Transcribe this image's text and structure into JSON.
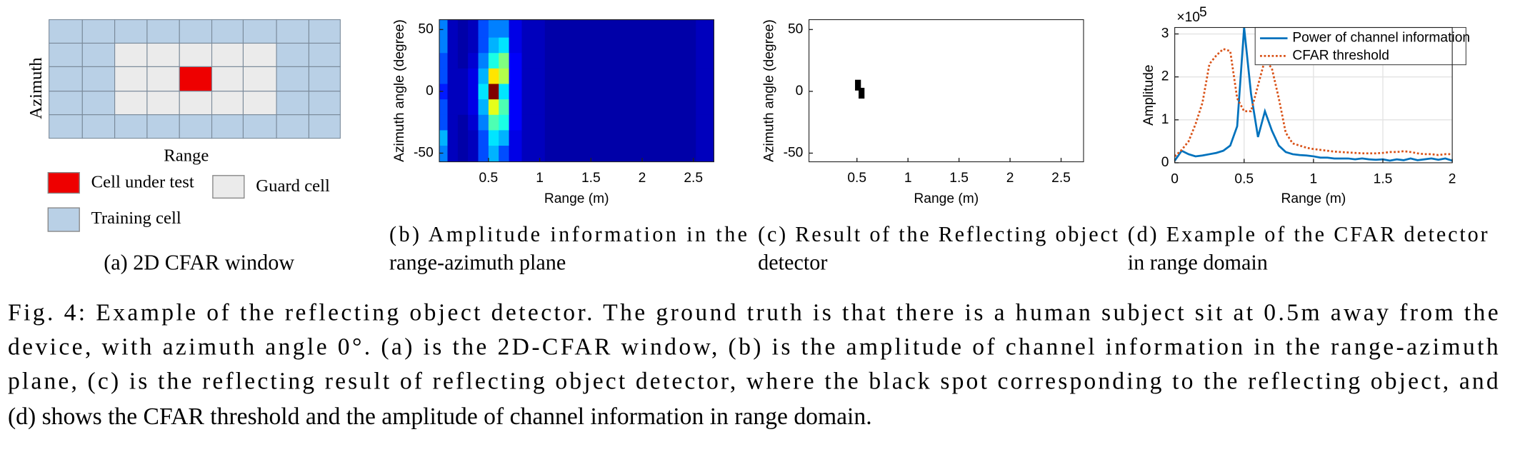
{
  "panel_a": {
    "row_label": "Azimuth",
    "col_label": "Range",
    "legend": [
      "Cell under test",
      "Guard cell",
      "Training cell"
    ],
    "caption": "(a) 2D CFAR window"
  },
  "chart_data": [
    {
      "type": "heatmap",
      "colormap": "jet",
      "caption_lines": [
        "(b) Amplitude information in the",
        "range-azimuth plane"
      ],
      "xlabel": "Range (m)",
      "ylabel": "Azimuth angle (degree)",
      "xlim": [
        0.02,
        2.7
      ],
      "ylim": [
        -57,
        58
      ],
      "xticks": [
        0.5,
        1,
        1.5,
        2,
        2.5
      ],
      "yticks": [
        -50,
        0,
        50
      ],
      "x": [
        0.05,
        0.15,
        0.25,
        0.35,
        0.45,
        0.55,
        0.65,
        0.75,
        0.9,
        1.2,
        1.6,
        2.0,
        2.4,
        2.65
      ],
      "y": [
        -50,
        -37.5,
        -25,
        -12.5,
        0,
        12.5,
        25,
        37.5,
        50
      ],
      "z": [
        [
          0.25,
          0.06,
          0.04,
          0.06,
          0.2,
          0.3,
          0.2,
          0.1,
          0.06,
          0.04,
          0.04,
          0.04,
          0.04,
          0.06
        ],
        [
          0.3,
          0.06,
          0.04,
          0.06,
          0.2,
          0.35,
          0.3,
          0.1,
          0.06,
          0.04,
          0.04,
          0.04,
          0.04,
          0.06
        ],
        [
          0.2,
          0.06,
          0.04,
          0.08,
          0.25,
          0.45,
          0.4,
          0.12,
          0.06,
          0.04,
          0.04,
          0.04,
          0.04,
          0.06
        ],
        [
          0.2,
          0.06,
          0.06,
          0.1,
          0.3,
          0.6,
          0.45,
          0.12,
          0.06,
          0.04,
          0.04,
          0.04,
          0.04,
          0.06
        ],
        [
          0.15,
          0.06,
          0.06,
          0.1,
          0.35,
          1.0,
          0.35,
          0.12,
          0.06,
          0.04,
          0.04,
          0.04,
          0.04,
          0.06
        ],
        [
          0.2,
          0.06,
          0.06,
          0.1,
          0.3,
          0.65,
          0.55,
          0.12,
          0.06,
          0.04,
          0.04,
          0.04,
          0.04,
          0.06
        ],
        [
          0.2,
          0.06,
          0.04,
          0.08,
          0.25,
          0.4,
          0.5,
          0.12,
          0.06,
          0.04,
          0.04,
          0.04,
          0.04,
          0.06
        ],
        [
          0.25,
          0.06,
          0.04,
          0.06,
          0.2,
          0.3,
          0.35,
          0.1,
          0.06,
          0.04,
          0.04,
          0.04,
          0.04,
          0.06
        ],
        [
          0.25,
          0.06,
          0.04,
          0.06,
          0.2,
          0.25,
          0.25,
          0.1,
          0.06,
          0.04,
          0.04,
          0.04,
          0.04,
          0.06
        ]
      ]
    },
    {
      "type": "scatter",
      "marker": "square",
      "color": "#000000",
      "caption_lines": [
        "(c) Result of the Reflecting object",
        "detector"
      ],
      "xlabel": "Range (m)",
      "ylabel": "Azimuth angle (degree)",
      "xlim": [
        0.03,
        2.72
      ],
      "ylim": [
        -57,
        58
      ],
      "xticks": [
        0.5,
        1,
        1.5,
        2,
        2.5
      ],
      "yticks": [
        -50,
        0,
        50
      ],
      "x": [
        0.51,
        0.545
      ],
      "y": [
        5,
        -1.5
      ]
    },
    {
      "type": "line",
      "grid": true,
      "legend": "upper right",
      "caption_lines": [
        "(d) Example of the CFAR detector",
        "in range domain"
      ],
      "xlabel": "Range (m)",
      "ylabel": "Amplitude",
      "y_scale_base": "×10",
      "y_scale_exponent": "5",
      "xlim": [
        0,
        2
      ],
      "ylim": [
        0,
        3.15
      ],
      "xticks": [
        0,
        0.5,
        1,
        1.5,
        2
      ],
      "yticks": [
        0,
        1,
        2,
        3
      ],
      "x": [
        0,
        0.05,
        0.1,
        0.15,
        0.2,
        0.25,
        0.3,
        0.35,
        0.4,
        0.45,
        0.5,
        0.55,
        0.6,
        0.65,
        0.7,
        0.75,
        0.8,
        0.85,
        0.9,
        0.95,
        1.0,
        1.05,
        1.1,
        1.15,
        1.2,
        1.25,
        1.3,
        1.35,
        1.4,
        1.45,
        1.5,
        1.55,
        1.6,
        1.65,
        1.7,
        1.75,
        1.8,
        1.85,
        1.9,
        1.95,
        2.0
      ],
      "series": [
        {
          "name": "Power of channel information",
          "color": "#0072bd",
          "dash": "solid",
          "values": [
            0.05,
            0.28,
            0.2,
            0.15,
            0.17,
            0.2,
            0.23,
            0.28,
            0.4,
            0.85,
            3.15,
            1.6,
            0.6,
            1.2,
            0.75,
            0.4,
            0.25,
            0.2,
            0.18,
            0.17,
            0.15,
            0.12,
            0.12,
            0.1,
            0.1,
            0.1,
            0.08,
            0.1,
            0.08,
            0.07,
            0.08,
            0.05,
            0.08,
            0.06,
            0.1,
            0.06,
            0.08,
            0.1,
            0.07,
            0.1,
            0.05
          ]
        },
        {
          "name": "CFAR threshold",
          "color": "#d95319",
          "dash": "dotted",
          "values": [
            0.15,
            0.3,
            0.5,
            0.9,
            1.4,
            2.3,
            2.5,
            2.65,
            2.6,
            1.5,
            1.2,
            1.2,
            1.8,
            2.4,
            2.2,
            1.5,
            0.7,
            0.45,
            0.4,
            0.35,
            0.32,
            0.3,
            0.28,
            0.26,
            0.25,
            0.24,
            0.23,
            0.22,
            0.22,
            0.22,
            0.23,
            0.25,
            0.25,
            0.27,
            0.25,
            0.22,
            0.2,
            0.2,
            0.18,
            0.2,
            0.2
          ]
        }
      ]
    }
  ],
  "caption_lines": [
    "Fig. 4: Example of the reflecting object detector. The ground truth is that there is a human subject sit at 0.5m away from the",
    "device, with azimuth angle 0°. (a) is the 2D-CFAR window, (b) is the amplitude of channel information in the range-azimuth",
    "plane, (c) is the reflecting result of reflecting object detector, where the black spot corresponding to the reflecting object, and",
    "(d) shows the CFAR threshold and the amplitude of channel information in range domain."
  ]
}
